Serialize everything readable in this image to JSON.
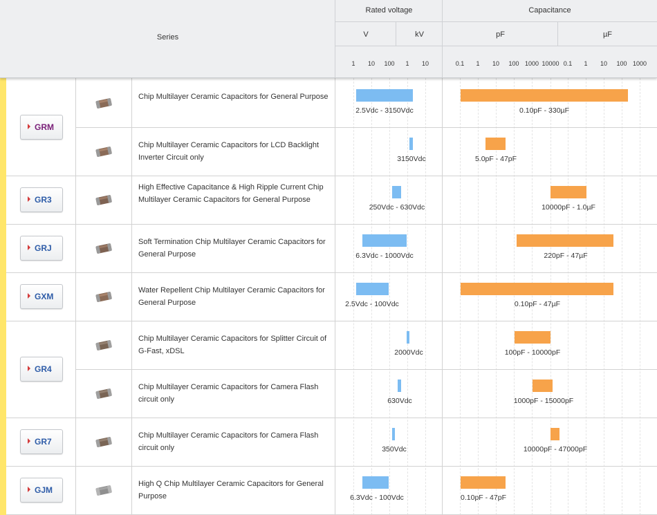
{
  "header": {
    "series_label": "Series",
    "rated_voltage_label": "Rated voltage",
    "capacitance_label": "Capacitance",
    "v_unit": "V",
    "kv_unit": "kV",
    "pf_unit": "pF",
    "uf_unit": "µF",
    "voltage_ticks": [
      "1",
      "10",
      "100",
      "1",
      "10"
    ],
    "cap_ticks": [
      "0.1",
      "1",
      "10",
      "100",
      "1000",
      "10000",
      "0.1",
      "1",
      "10",
      "100",
      "1000"
    ]
  },
  "colors": {
    "voltage_bar": "#7cbcf2",
    "capacitance_bar": "#f7a34a",
    "left_stripe": "#ffe66a"
  },
  "rows": [
    {
      "series": "GRM",
      "description": "Chip Multilayer Ceramic Capacitors for General Purpose",
      "voltage_range": "2.5Vdc - 3150Vdc",
      "capacitance_range": "0.10pF - 330µF"
    },
    {
      "series": "",
      "description": "Chip Multilayer Ceramic Capacitors for LCD Backlight Inverter Circuit only",
      "voltage_range": "3150Vdc",
      "capacitance_range": "5.0pF - 47pF"
    },
    {
      "series": "GR3",
      "description": "High Effective Capacitance & High Ripple Current Chip Multilayer Ceramic Capacitors for General Purpose",
      "voltage_range": "250Vdc - 630Vdc",
      "capacitance_range": "10000pF - 1.0µF"
    },
    {
      "series": "GRJ",
      "description": "Soft Termination Chip Multilayer Ceramic Capacitors for General Purpose",
      "voltage_range": "6.3Vdc - 1000Vdc",
      "capacitance_range": "220pF - 47µF"
    },
    {
      "series": "GXM",
      "description": "Water Repellent Chip Multilayer Ceramic Capacitors for General Purpose",
      "voltage_range": "2.5Vdc - 100Vdc",
      "capacitance_range": "0.10pF - 47µF"
    },
    {
      "series": "GR4",
      "description": "Chip Multilayer Ceramic Capacitors for Splitter Circuit of G-Fast, xDSL",
      "voltage_range": "2000Vdc",
      "capacitance_range": "100pF - 10000pF"
    },
    {
      "series": "",
      "description": "Chip Multilayer Ceramic Capacitors for Camera Flash circuit only",
      "voltage_range": "630Vdc",
      "capacitance_range": "1000pF - 15000pF"
    },
    {
      "series": "GR7",
      "description": "Chip Multilayer Ceramic Capacitors for Camera Flash circuit only",
      "voltage_range": "350Vdc",
      "capacitance_range": "10000pF - 47000pF"
    },
    {
      "series": "GJM",
      "description": "High Q Chip Multilayer Ceramic Capacitors for General Purpose",
      "voltage_range": "6.3Vdc - 100Vdc",
      "capacitance_range": "0.10pF - 47pF"
    }
  ]
}
